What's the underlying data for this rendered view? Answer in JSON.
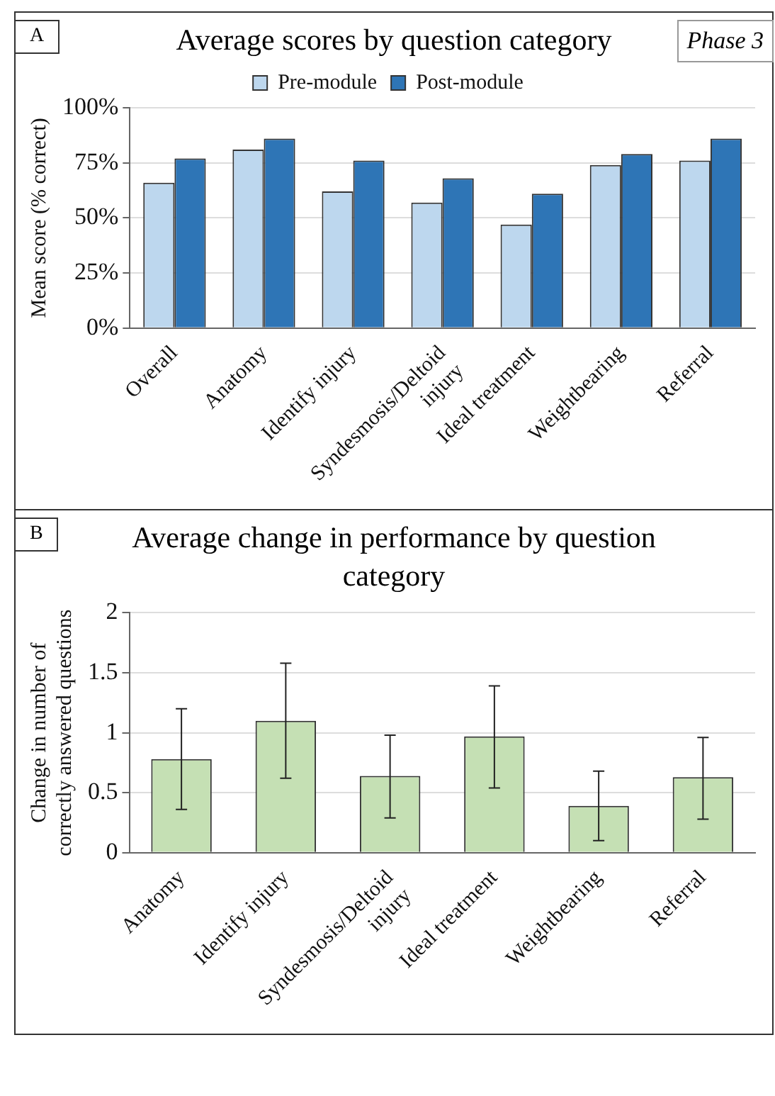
{
  "chart_data": [
    {
      "type": "bar",
      "title": "Average scores by question category",
      "ylabel": "Mean score (% correct)",
      "annotations": [
        "A",
        "Phase 3"
      ],
      "categories": [
        "Overall",
        "Anatomy",
        "Identify injury",
        "Syndesmosis/Deltoid injury",
        "Ideal treatment",
        "Weightbearing",
        "Referral"
      ],
      "series": [
        {
          "name": "Pre-module",
          "color": "#bdd7ee",
          "values": [
            66,
            81,
            62,
            57,
            47,
            74,
            76
          ]
        },
        {
          "name": "Post-module",
          "color": "#2e75b6",
          "values": [
            77,
            86,
            76,
            68,
            61,
            79,
            86
          ]
        }
      ],
      "ylim": [
        0,
        100
      ],
      "yticks": [
        {
          "value": 0,
          "label": "0%"
        },
        {
          "value": 25,
          "label": "25%"
        },
        {
          "value": 50,
          "label": "50%"
        },
        {
          "value": 75,
          "label": "75%"
        },
        {
          "value": 100,
          "label": "100%"
        }
      ],
      "grid": "y",
      "legend": "top"
    },
    {
      "type": "bar",
      "title": "Average change in performance by question category",
      "ylabel": "Change in number of correctly answered questions",
      "annotations": [
        "B"
      ],
      "categories": [
        "Anatomy",
        "Identify injury",
        "Syndesmosis/Deltoid injury",
        "Ideal treatment",
        "Weightbearing",
        "Referral"
      ],
      "values": [
        0.78,
        1.1,
        0.64,
        0.97,
        0.39,
        0.63
      ],
      "color": "#c5e0b4",
      "errors": [
        [
          0.36,
          1.2
        ],
        [
          0.62,
          1.58
        ],
        [
          0.29,
          0.98
        ],
        [
          0.54,
          1.39
        ],
        [
          0.1,
          0.68
        ],
        [
          0.28,
          0.96
        ]
      ],
      "ylim": [
        0,
        2
      ],
      "yticks": [
        0,
        0.5,
        1,
        1.5,
        2
      ],
      "grid": "y"
    }
  ]
}
